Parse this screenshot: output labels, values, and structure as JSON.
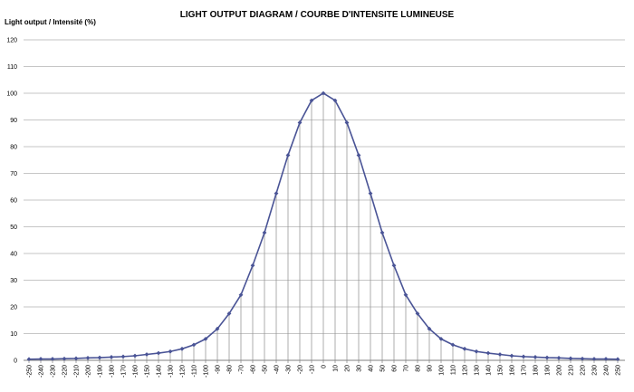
{
  "chart_data": {
    "type": "line",
    "title": "LIGHT OUTPUT DIAGRAM / COURBE D'INTENSITE LUMINEUSE",
    "ylabel": "Light output / Intensité (%)",
    "xlabel": "",
    "ylim": [
      0,
      120
    ],
    "y_ticks": [
      0,
      10,
      20,
      30,
      40,
      50,
      60,
      70,
      80,
      90,
      100,
      110,
      120
    ],
    "grid": true,
    "drop_lines": true,
    "marker": "diamond",
    "colors": {
      "line": "#4a5496",
      "grid": "#b3b3b3",
      "drop": "#8c8c8c",
      "axis": "#808080"
    },
    "categories": [
      -250,
      -240,
      -230,
      -220,
      -210,
      -200,
      -190,
      -180,
      -170,
      -160,
      -150,
      -140,
      -130,
      -120,
      -110,
      -100,
      -90,
      -80,
      -70,
      -60,
      -50,
      -40,
      -30,
      -20,
      -10,
      0,
      10,
      20,
      30,
      40,
      50,
      60,
      70,
      80,
      90,
      100,
      110,
      120,
      130,
      140,
      150,
      160,
      170,
      180,
      190,
      200,
      210,
      220,
      230,
      240,
      250
    ],
    "series": [
      {
        "values": [
          0.4,
          0.5,
          0.5,
          0.6,
          0.7,
          0.9,
          1.0,
          1.2,
          1.4,
          1.7,
          2.2,
          2.7,
          3.3,
          4.3,
          5.8,
          8.0,
          11.8,
          17.5,
          24.5,
          35.5,
          47.8,
          62.5,
          76.8,
          89.0,
          97.3,
          100,
          97.3,
          89.0,
          76.8,
          62.5,
          47.8,
          35.5,
          24.5,
          17.5,
          11.8,
          8.0,
          5.8,
          4.3,
          3.3,
          2.7,
          2.2,
          1.7,
          1.4,
          1.2,
          1.0,
          0.9,
          0.7,
          0.6,
          0.5,
          0.5,
          0.4
        ]
      }
    ]
  }
}
